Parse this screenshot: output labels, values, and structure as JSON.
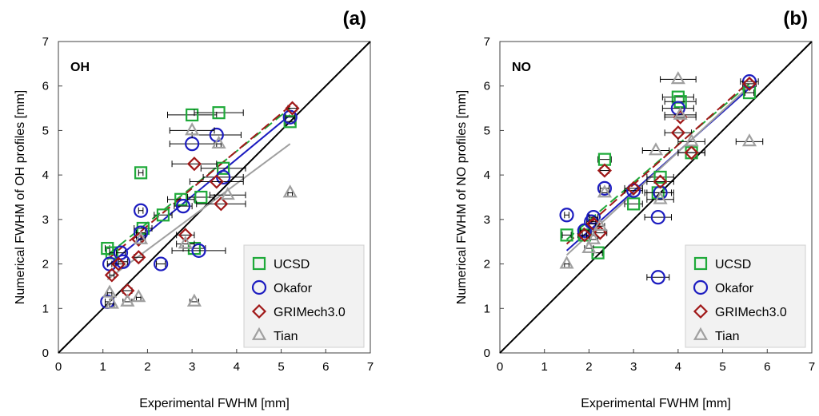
{
  "chart_data": [
    {
      "panel_label": "(a)",
      "inset_label": "OH",
      "type": "scatter",
      "xlabel": "Experimental  FWHM [mm]",
      "ylabel": "Numerical FWHM of OH profiles [mm]",
      "xlim": [
        0,
        7
      ],
      "ylim": [
        0,
        7
      ],
      "xticks": [
        "0",
        "1",
        "2",
        "3",
        "4",
        "5",
        "6",
        "7"
      ],
      "yticks": [
        "0",
        "1",
        "2",
        "3",
        "4",
        "5",
        "6",
        "7"
      ],
      "legend_position": "bottom-right",
      "series": [
        {
          "name": "UCSD",
          "marker": "square",
          "color": "#1faa3a",
          "x": [
            1.1,
            1.2,
            1.85,
            1.9,
            2.35,
            2.75,
            3.0,
            3.05,
            3.2,
            3.6,
            3.7,
            5.2
          ],
          "y": [
            2.35,
            2.25,
            4.05,
            2.8,
            3.1,
            3.45,
            5.35,
            2.35,
            3.5,
            5.4,
            4.15,
            5.2
          ],
          "xerr": [
            0.05,
            0.05,
            0.05,
            0.2,
            0.2,
            0.3,
            0.55,
            0.25,
            0.3,
            0.55,
            0.5,
            0.1
          ],
          "fit": [
            [
              1.1,
              2.2
            ],
            [
              5.2,
              5.5
            ]
          ],
          "fit_dashed": true
        },
        {
          "name": "Okafor",
          "marker": "circle",
          "color": "#1c1cc0",
          "x": [
            1.1,
            1.15,
            1.4,
            1.45,
            1.85,
            1.85,
            2.3,
            2.8,
            3.0,
            3.15,
            3.55,
            3.7,
            5.2
          ],
          "y": [
            1.15,
            2.0,
            2.25,
            2.05,
            3.2,
            2.7,
            2.0,
            3.3,
            4.7,
            2.3,
            4.9,
            3.95,
            5.3
          ],
          "xerr": [
            0.05,
            0.05,
            0.1,
            0.1,
            0.05,
            0.1,
            0.1,
            0.2,
            0.5,
            0.6,
            0.55,
            0.45,
            0.1
          ],
          "fit": [
            [
              1.1,
              1.95
            ],
            [
              5.2,
              5.35
            ]
          ],
          "fit_dashed": false
        },
        {
          "name": "GRIMech3.0",
          "marker": "diamond",
          "color": "#a01818",
          "x": [
            1.2,
            1.35,
            1.55,
            1.8,
            1.8,
            2.85,
            3.05,
            3.55,
            3.65,
            5.25
          ],
          "y": [
            1.75,
            2.0,
            1.4,
            2.55,
            2.15,
            2.65,
            4.25,
            3.85,
            3.35,
            5.5
          ],
          "xerr": [
            0.05,
            0.1,
            0.1,
            0.05,
            0.1,
            0.2,
            0.5,
            0.6,
            0.55,
            0.1
          ],
          "fit": [
            [
              1.1,
              2.1
            ],
            [
              5.2,
              5.55
            ]
          ],
          "fit_dashed": true
        },
        {
          "name": "Tian",
          "marker": "triangle",
          "color": "#a0a0a0",
          "x": [
            1.15,
            1.2,
            1.55,
            1.8,
            1.85,
            2.85,
            3.0,
            3.05,
            3.6,
            3.8,
            5.2
          ],
          "y": [
            1.35,
            1.1,
            1.15,
            1.25,
            2.55,
            2.45,
            5.0,
            1.15,
            4.7,
            3.55,
            3.6
          ],
          "xerr": [
            0.05,
            0.05,
            0.1,
            0.05,
            0.1,
            0.2,
            0.5,
            0.1,
            0.05,
            0.4,
            0.05
          ],
          "fit": [
            [
              1.1,
              1.65
            ],
            [
              5.2,
              4.7
            ]
          ],
          "fit_dashed": false
        }
      ],
      "reference_line": {
        "x": [
          0,
          7
        ],
        "y": [
          0,
          7
        ],
        "color": "#000000"
      }
    },
    {
      "panel_label": "(b)",
      "inset_label": "NO",
      "type": "scatter",
      "xlabel": "Experimental  FWHM [mm]",
      "ylabel": "Numerical FWHM of NO profiles [mm]",
      "xlim": [
        0,
        7
      ],
      "ylim": [
        0,
        7
      ],
      "xticks": [
        "0",
        "1",
        "2",
        "3",
        "4",
        "5",
        "6",
        "7"
      ],
      "yticks": [
        "0",
        "1",
        "2",
        "3",
        "4",
        "5",
        "6",
        "7"
      ],
      "legend_position": "bottom-right",
      "series": [
        {
          "name": "UCSD",
          "marker": "square",
          "color": "#1faa3a",
          "x": [
            1.5,
            1.9,
            2.2,
            2.35,
            3.0,
            3.55,
            3.6,
            4.0,
            4.05,
            4.3,
            5.6
          ],
          "y": [
            2.65,
            2.65,
            2.25,
            4.35,
            3.35,
            3.6,
            3.95,
            5.75,
            5.65,
            4.5,
            5.85
          ],
          "xerr": [
            0.1,
            0.15,
            0.1,
            0.15,
            0.2,
            0.3,
            0.3,
            0.35,
            0.35,
            0.3,
            0.1
          ],
          "fit": [
            [
              1.5,
              2.55
            ],
            [
              5.6,
              6.05
            ]
          ],
          "fit_dashed": true
        },
        {
          "name": "Okafor",
          "marker": "circle",
          "color": "#1c1cc0",
          "x": [
            1.5,
            1.9,
            2.05,
            2.1,
            2.35,
            3.0,
            3.55,
            3.6,
            4.0,
            5.6,
            3.55
          ],
          "y": [
            3.1,
            2.75,
            2.95,
            3.05,
            3.7,
            3.65,
            3.05,
            3.6,
            5.5,
            6.1,
            1.7
          ],
          "xerr": [
            0.05,
            0.1,
            0.1,
            0.1,
            0.1,
            0.2,
            0.3,
            0.3,
            0.35,
            0.2,
            0.25
          ],
          "fit": [
            [
              1.5,
              2.3
            ],
            [
              5.6,
              5.95
            ]
          ],
          "fit_dashed": false
        },
        {
          "name": "GRIMech3.0",
          "marker": "diamond",
          "color": "#a01818",
          "x": [
            1.9,
            2.1,
            2.25,
            2.35,
            3.0,
            3.6,
            4.0,
            4.05,
            4.3,
            5.6
          ],
          "y": [
            2.65,
            2.9,
            2.7,
            4.1,
            3.7,
            3.85,
            4.95,
            5.3,
            4.5,
            6.05
          ],
          "xerr": [
            0.05,
            0.1,
            0.15,
            0.1,
            0.2,
            0.3,
            0.3,
            0.35,
            0.3,
            0.15
          ],
          "fit": [
            [
              1.5,
              2.45
            ],
            [
              5.6,
              6.1
            ]
          ],
          "fit_dashed": true
        },
        {
          "name": "Tian",
          "marker": "triangle",
          "color": "#a0a0a0",
          "x": [
            1.5,
            2.0,
            2.1,
            2.25,
            2.35,
            3.5,
            3.6,
            4.0,
            4.05,
            4.3,
            5.6
          ],
          "y": [
            2.0,
            2.35,
            2.55,
            2.85,
            3.6,
            4.55,
            3.45,
            6.15,
            5.35,
            4.75,
            4.75
          ],
          "xerr": [
            0.05,
            0.1,
            0.1,
            0.1,
            0.1,
            0.3,
            0.3,
            0.4,
            0.35,
            0.3,
            0.3
          ],
          "fit": [
            [
              1.5,
              2.2
            ],
            [
              5.6,
              6.0
            ]
          ],
          "fit_dashed": false
        }
      ],
      "reference_line": {
        "x": [
          0,
          7
        ],
        "y": [
          0,
          7
        ],
        "color": "#000000"
      }
    }
  ]
}
